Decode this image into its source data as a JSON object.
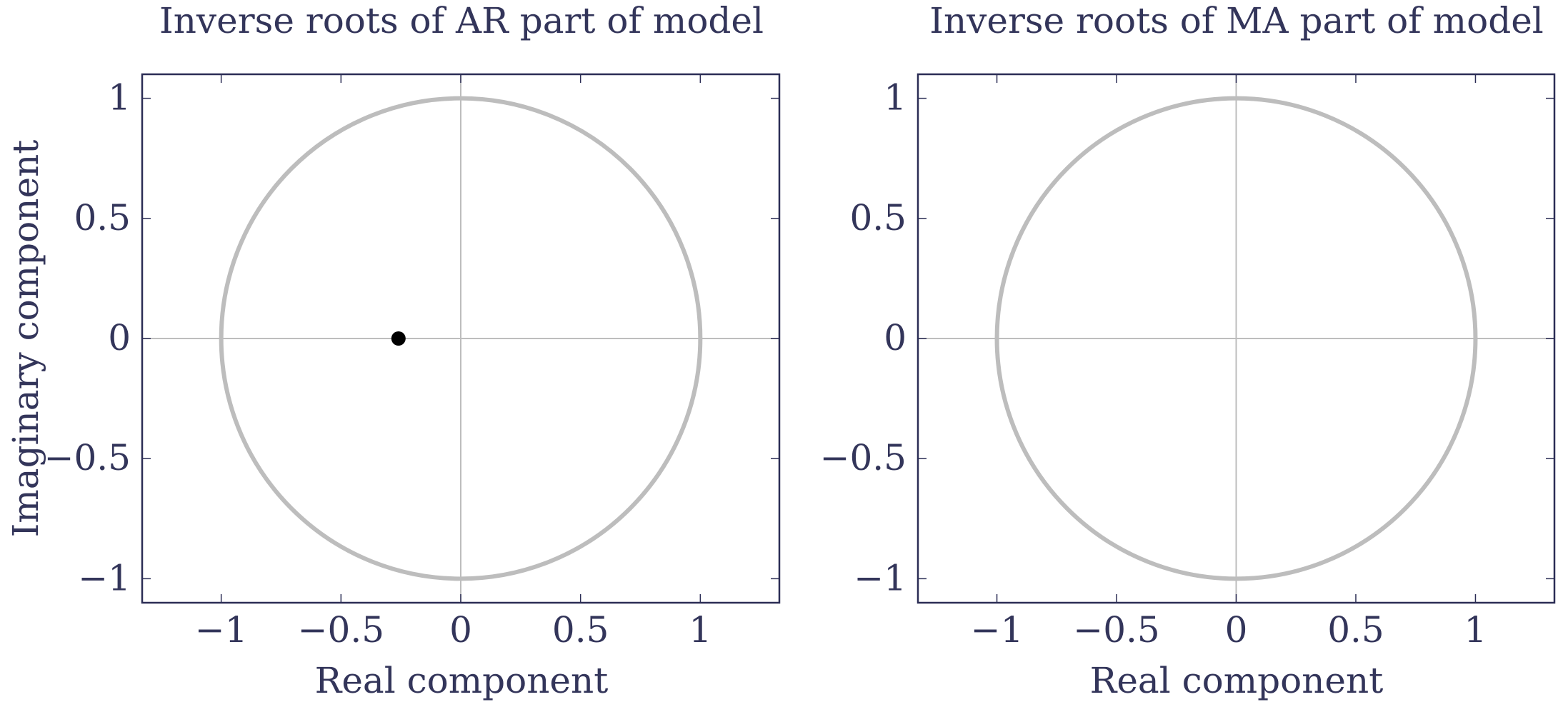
{
  "colors": {
    "text": "#33355a",
    "axis": "#2b2d55",
    "circle": "#bdbdbd",
    "cross": "#bdbdbd",
    "root": "#000000",
    "background": "#ffffff"
  },
  "chart_data": [
    {
      "type": "scatter",
      "title": "Inverse roots of AR part of model",
      "xlabel": "Real component",
      "ylabel": "Imaginary component",
      "xlim": [
        -1.33,
        1.33
      ],
      "ylim": [
        -1.1,
        1.1
      ],
      "x_ticks": [
        -1,
        -0.5,
        0,
        0.5,
        1
      ],
      "y_ticks": [
        -1,
        -0.5,
        0,
        0.5,
        1
      ],
      "x_tick_labels": [
        "−1",
        "−0.5",
        "0",
        "0.5",
        "1"
      ],
      "y_tick_labels": [
        "−1",
        "−0.5",
        "0",
        "0.5",
        "1"
      ],
      "unit_circle": true,
      "grid": false,
      "points": [
        {
          "x": -0.26,
          "y": 0
        }
      ]
    },
    {
      "type": "scatter",
      "title": "Inverse roots of MA part of model",
      "xlabel": "Real component",
      "ylabel": "",
      "xlim": [
        -1.33,
        1.33
      ],
      "ylim": [
        -1.1,
        1.1
      ],
      "x_ticks": [
        -1,
        -0.5,
        0,
        0.5,
        1
      ],
      "y_ticks": [
        -1,
        -0.5,
        0,
        0.5,
        1
      ],
      "x_tick_labels": [
        "−1",
        "−0.5",
        "0",
        "0.5",
        "1"
      ],
      "y_tick_labels": [
        "−1",
        "−0.5",
        "0",
        "0.5",
        "1"
      ],
      "unit_circle": true,
      "grid": false,
      "points": []
    }
  ]
}
